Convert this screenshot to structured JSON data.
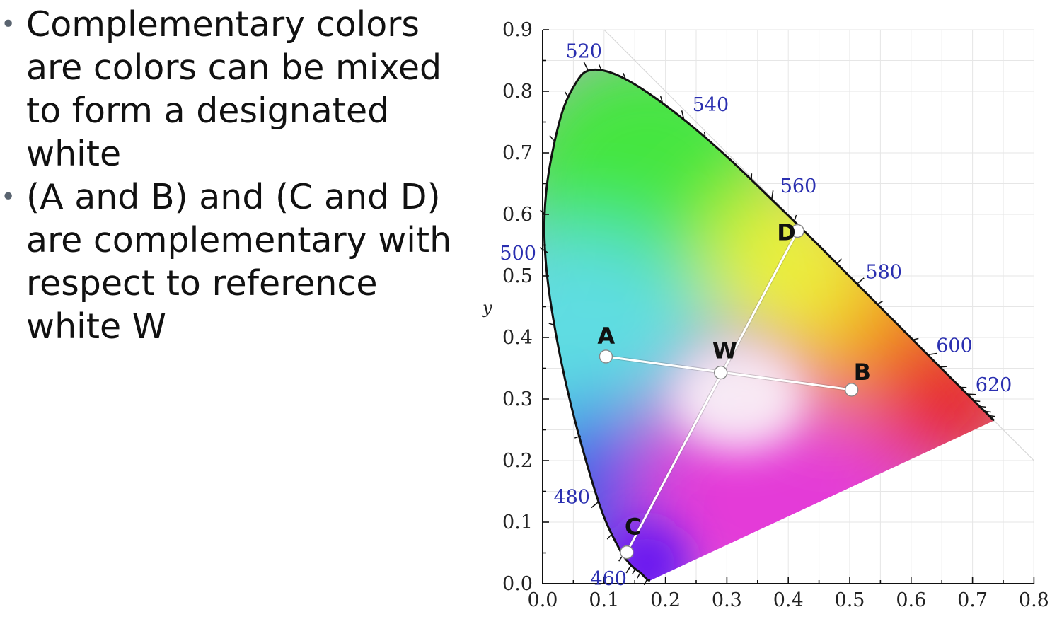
{
  "bullets": [
    "Complementary colors are colors can be mixed to form a designated white",
    "(A and B) and (C and D) are complementary with respect to reference white W"
  ],
  "diagram": {
    "y_axis_label": "y",
    "x_ticks": [
      "0.0",
      "0.1",
      "0.2",
      "0.3",
      "0.4",
      "0.5",
      "0.6",
      "0.7",
      "0.8"
    ],
    "y_ticks": [
      "0.0",
      "0.1",
      "0.2",
      "0.3",
      "0.4",
      "0.5",
      "0.6",
      "0.7",
      "0.8",
      "0.9"
    ],
    "wavelengths": [
      {
        "label": "460",
        "x": 0.144,
        "y": 0.03
      },
      {
        "label": "480",
        "x": 0.091,
        "y": 0.133
      },
      {
        "label": "500",
        "x": 0.008,
        "y": 0.538
      },
      {
        "label": "520",
        "x": 0.074,
        "y": 0.834
      },
      {
        "label": "540",
        "x": 0.23,
        "y": 0.754
      },
      {
        "label": "560",
        "x": 0.373,
        "y": 0.624
      },
      {
        "label": "580",
        "x": 0.512,
        "y": 0.487
      },
      {
        "label": "600",
        "x": 0.627,
        "y": 0.372
      },
      {
        "label": "620",
        "x": 0.691,
        "y": 0.308
      }
    ],
    "points": [
      {
        "label": "A",
        "x": 0.103,
        "y": 0.369
      },
      {
        "label": "B",
        "x": 0.503,
        "y": 0.315
      },
      {
        "label": "C",
        "x": 0.137,
        "y": 0.051
      },
      {
        "label": "D",
        "x": 0.415,
        "y": 0.573
      },
      {
        "label": "W",
        "x": 0.29,
        "y": 0.343
      }
    ],
    "colors": {
      "green": "#44e640",
      "cyan": "#5fdde2",
      "blue": "#3b58e8",
      "violet": "#6a18f0",
      "magenta": "#e43ad8",
      "red": "#e82828",
      "orange": "#f39b1e",
      "yellow": "#ecf03a",
      "white_point": "#fbf6f8",
      "wavelength_text": "#2a2fb0"
    }
  }
}
